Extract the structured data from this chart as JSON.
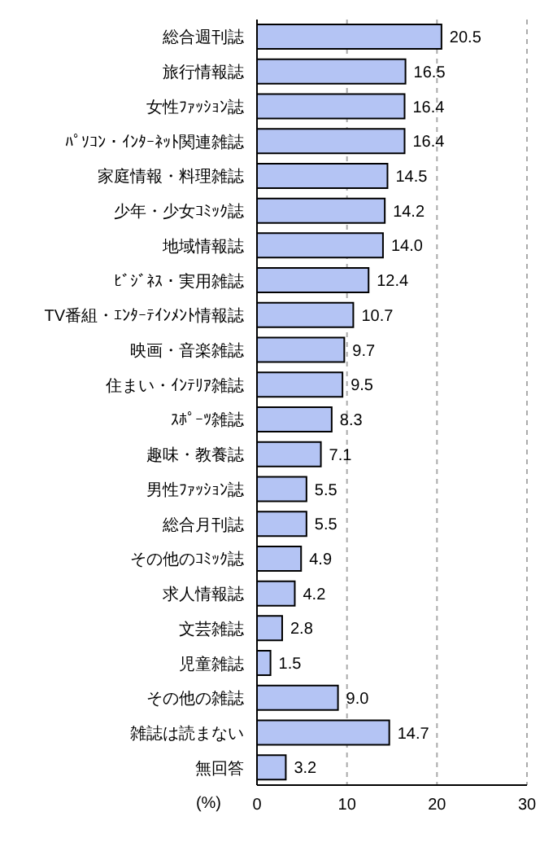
{
  "chart_data": {
    "type": "bar",
    "orientation": "horizontal",
    "xlabel": "(%)",
    "categories": [
      "総合週刊誌",
      "旅行情報誌",
      "女性ﾌｧｯｼｮﾝ誌",
      "ﾊﾟｿｺﾝ・ｲﾝﾀｰﾈｯﾄ関連雑誌",
      "家庭情報・料理雑誌",
      "少年・少女ｺﾐｯｸ誌",
      "地域情報誌",
      "ﾋﾞｼﾞﾈｽ・実用雑誌",
      "TV番組・ｴﾝﾀｰﾃｲﾝﾒﾝﾄ情報誌",
      "映画・音楽雑誌",
      "住まい・ｲﾝﾃﾘｱ雑誌",
      "ｽﾎﾟｰﾂ雑誌",
      "趣味・教養誌",
      "男性ﾌｧｯｼｮﾝ誌",
      "総合月刊誌",
      "その他のｺﾐｯｸ誌",
      "求人情報誌",
      "文芸雑誌",
      "児童雑誌",
      "その他の雑誌",
      "雑誌は読まない",
      "無回答"
    ],
    "values": [
      20.5,
      16.5,
      16.4,
      16.4,
      14.5,
      14.2,
      14.0,
      12.4,
      10.7,
      9.7,
      9.5,
      8.3,
      7.1,
      5.5,
      5.5,
      4.9,
      4.2,
      2.8,
      1.5,
      9.0,
      14.7,
      3.2
    ],
    "value_labels": [
      "20.5",
      "16.5",
      "16.4",
      "16.4",
      "14.5",
      "14.2",
      "14.0",
      "12.4",
      "10.7",
      "9.7",
      "9.5",
      "8.3",
      "7.1",
      "5.5",
      "5.5",
      "4.9",
      "4.2",
      "2.8",
      "1.5",
      "9.0",
      "14.7",
      "3.2"
    ],
    "color": "#b4c4f4",
    "xlim": [
      0,
      30
    ],
    "xticks": [
      0,
      10,
      20,
      30
    ],
    "grid": "x",
    "legend": false
  }
}
